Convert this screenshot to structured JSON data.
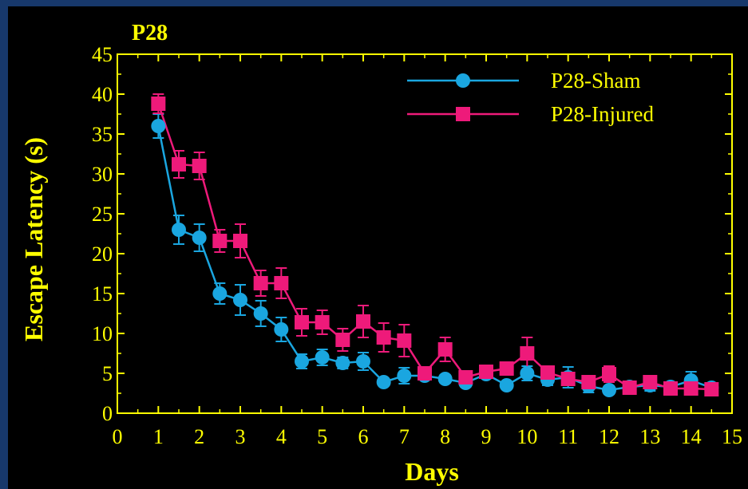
{
  "chart_data": {
    "type": "line",
    "title": "P28",
    "xlabel": "Days",
    "ylabel": "Escape Latency (s)",
    "xlim": [
      0,
      15
    ],
    "ylim": [
      0,
      45
    ],
    "xticks": [
      "0",
      "1",
      "2",
      "3",
      "4",
      "5",
      "6",
      "7",
      "8",
      "9",
      "10",
      "11",
      "12",
      "13",
      "14",
      "15"
    ],
    "yticks": [
      "0",
      "5",
      "10",
      "15",
      "20",
      "25",
      "30",
      "35",
      "40",
      "45"
    ],
    "grid": false,
    "legend_position": "top-right",
    "colors": {
      "axis": "#ffff00",
      "text": "#ffff00",
      "sham": "#1aa6e0",
      "injured": "#ee1a7a",
      "background": "#000000",
      "frame": "#17386b"
    },
    "x": [
      1,
      1.5,
      2,
      2.5,
      3,
      3.5,
      4,
      4.5,
      5,
      5.5,
      6,
      6.5,
      7,
      7.5,
      8,
      8.5,
      9,
      9.5,
      10,
      10.5,
      11,
      11.5,
      12,
      12.5,
      13,
      13.5,
      14,
      14.5
    ],
    "series": [
      {
        "name": "P28-Sham",
        "marker": "circle",
        "color": "#1aa6e0",
        "values": [
          36,
          23,
          22,
          15,
          14.2,
          12.5,
          10.5,
          6.5,
          7,
          6.3,
          6.5,
          3.9,
          4.7,
          4.7,
          4.3,
          3.8,
          4.9,
          3.5,
          5,
          4.2,
          4.5,
          3.4,
          2.9,
          3.3,
          3.5,
          3.3,
          4.1,
          3.2
        ],
        "errors": [
          1.5,
          1.8,
          1.7,
          1.3,
          1.9,
          1.6,
          1.5,
          0.9,
          1.0,
          0.7,
          1.1,
          0.4,
          1.0,
          0.5,
          0.5,
          0.5,
          0.5,
          0.4,
          0.9,
          0.7,
          1.3,
          0.8,
          0.5,
          0.7,
          0.7,
          0.5,
          1.1,
          0.5
        ]
      },
      {
        "name": "P28-Injured",
        "marker": "square",
        "color": "#ee1a7a",
        "values": [
          38.8,
          31.2,
          31,
          21.6,
          21.6,
          16.3,
          16.3,
          11.4,
          11.4,
          9.2,
          11.5,
          9.5,
          9.1,
          5,
          8,
          4.5,
          5.2,
          5.6,
          7.5,
          5.1,
          4.3,
          3.9,
          4.9,
          3.2,
          3.9,
          3.1,
          3.1,
          3
        ]
      }
    ],
    "injured_errors": [
      1.2,
      1.7,
      1.7,
      1.4,
      2.1,
      1.6,
      1.9,
      1.7,
      1.5,
      1.4,
      2.0,
      1.8,
      2.0,
      0.6,
      1.5,
      0.4,
      0.5,
      0.6,
      2.0,
      0.6,
      0.7,
      0.6,
      1.0,
      0.5,
      0.7,
      0.5,
      0.5,
      0.5
    ]
  }
}
